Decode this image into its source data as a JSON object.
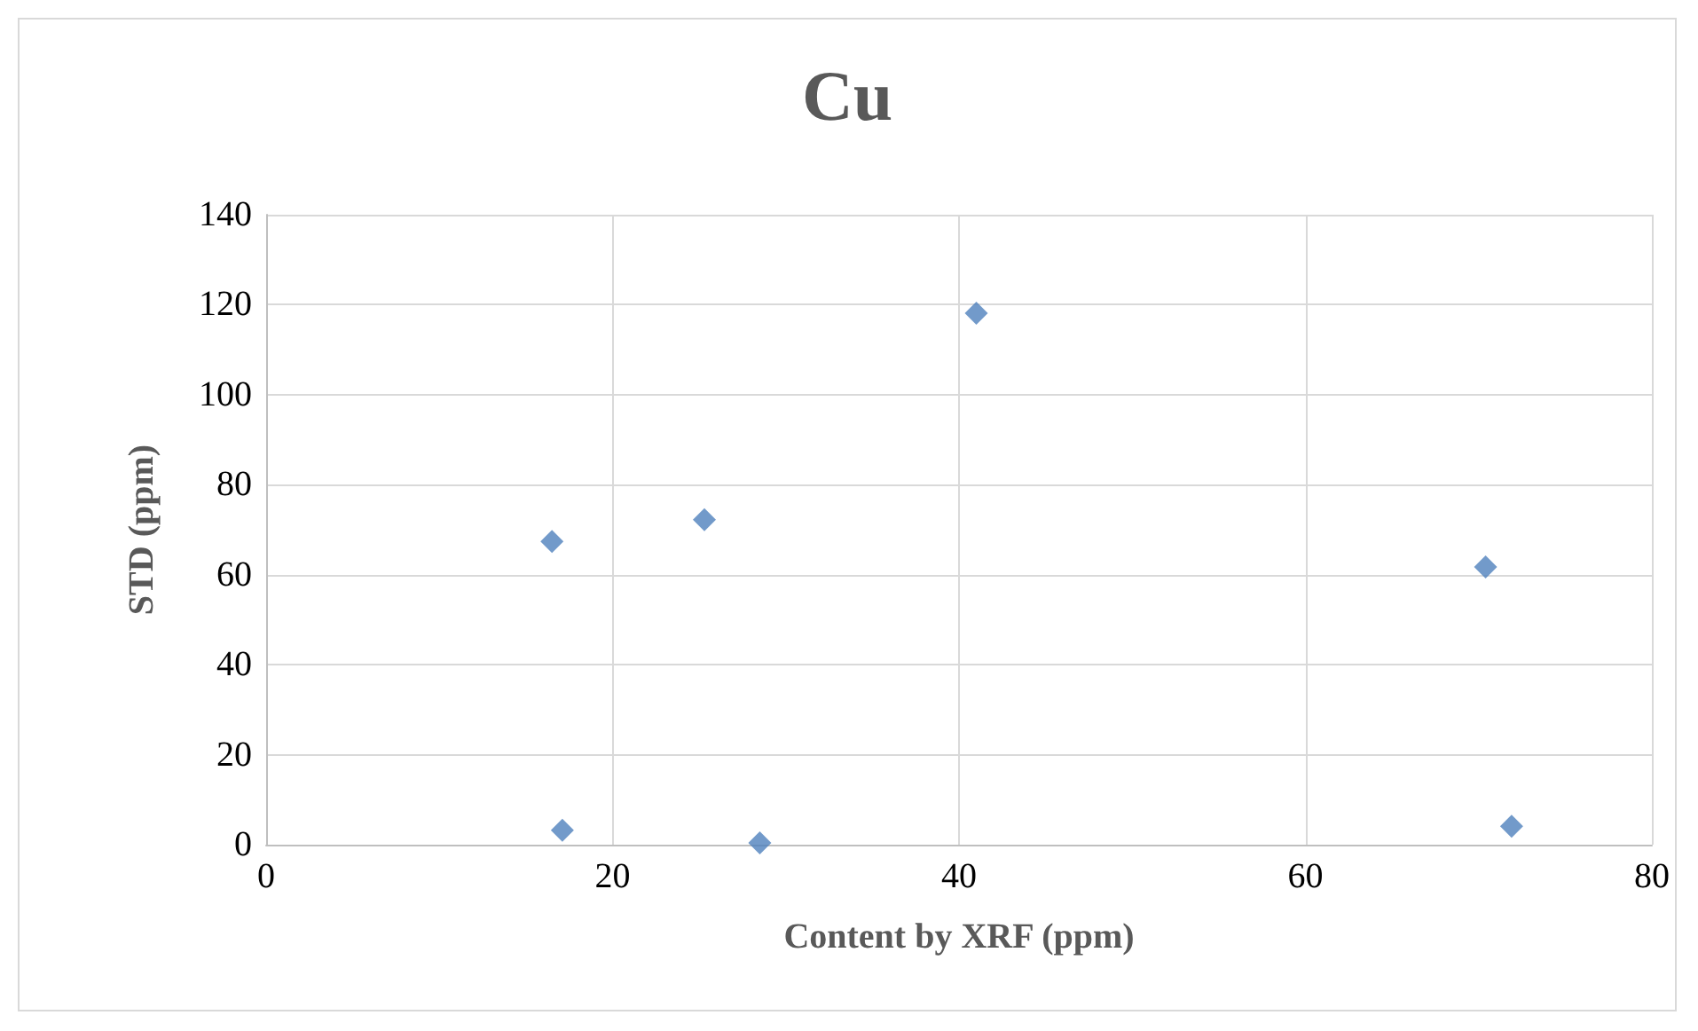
{
  "chart_data": {
    "type": "scatter",
    "title": "Cu",
    "xlabel": "Content by XRF (ppm)",
    "ylabel": "STD (ppm)",
    "x": [
      16.5,
      17.1,
      25.3,
      28.5,
      41.0,
      70.4,
      71.9
    ],
    "values": [
      67.4,
      3.2,
      72.2,
      0.4,
      118.1,
      61.7,
      4.1
    ],
    "color": "#4f81bd",
    "marker": "diamond",
    "xlim": [
      0,
      80
    ],
    "xticks": [
      0,
      20,
      40,
      60,
      80
    ],
    "ylim": [
      0,
      140
    ],
    "yticks": [
      0,
      20,
      40,
      60,
      80,
      100,
      120,
      140
    ],
    "grid": true
  }
}
